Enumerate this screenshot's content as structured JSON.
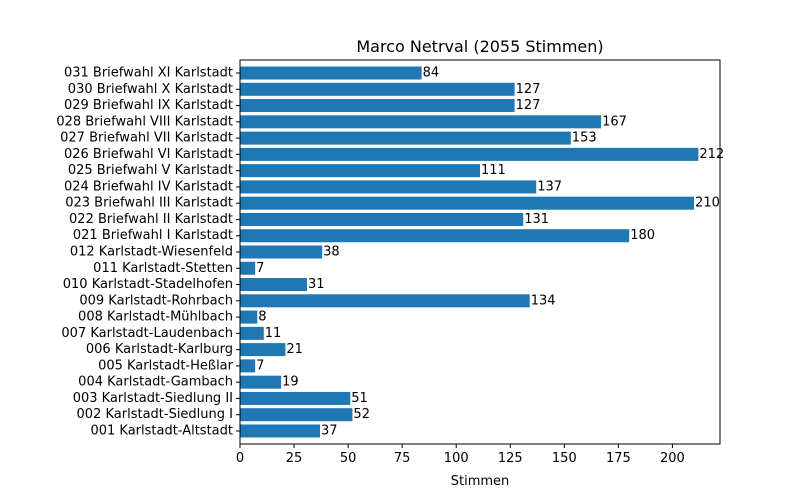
{
  "chart_data": {
    "type": "bar",
    "orientation": "horizontal",
    "title": "Marco Netrval (2055 Stimmen)",
    "xlabel": "Stimmen",
    "ylabel": "",
    "xlim": [
      0,
      222
    ],
    "xticks": [
      0,
      25,
      50,
      75,
      100,
      125,
      150,
      175,
      200
    ],
    "grid": false,
    "bar_color": "#1f77b4",
    "categories": [
      "001 Karlstadt-Altstadt",
      "002 Karlstadt-Siedlung I",
      "003 Karlstadt-Siedlung II",
      "004 Karlstadt-Gambach",
      "005 Karlstadt-Heßlar",
      "006 Karlstadt-Karlburg",
      "007 Karlstadt-Laudenbach",
      "008 Karlstadt-Mühlbach",
      "009 Karlstadt-Rohrbach",
      "010 Karlstadt-Stadelhofen",
      "011 Karlstadt-Stetten",
      "012 Karlstadt-Wiesenfeld",
      "021 Briefwahl I Karlstadt",
      "022 Briefwahl II Karlstadt",
      "023 Briefwahl III Karlstadt",
      "024 Briefwahl IV Karlstadt",
      "025 Briefwahl V Karlstadt",
      "026 Briefwahl VI Karlstadt",
      "027 Briefwahl VII Karlstadt",
      "028 Briefwahl VIII Karlstadt",
      "029 Briefwahl IX Karlstadt",
      "030 Briefwahl X Karlstadt",
      "031 Briefwahl XI Karlstadt"
    ],
    "values": [
      37,
      52,
      51,
      19,
      7,
      21,
      11,
      8,
      134,
      31,
      7,
      38,
      180,
      131,
      210,
      137,
      111,
      212,
      153,
      167,
      127,
      127,
      84
    ]
  }
}
